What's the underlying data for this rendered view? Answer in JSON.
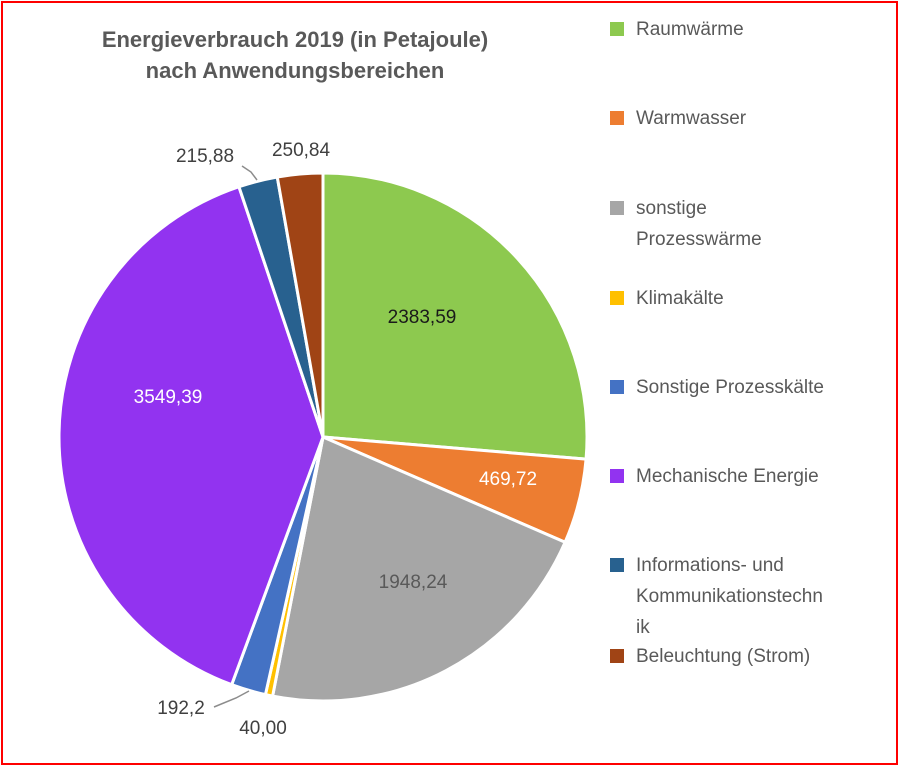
{
  "chart_data": {
    "type": "pie",
    "title": "Energieverbrauch 2019 (in Petajoule) nach Anwendungsbereichen",
    "title_lines": [
      "Energieverbrauch 2019 (in Petajoule)",
      "nach Anwendungsbereichen"
    ],
    "unit": "Petajoule",
    "year": "2019",
    "direction": "clockwise",
    "start_angle_deg": 0,
    "legend_position": "right",
    "frame_color": "#FE0000",
    "title_color": "#595959",
    "legend_text_color": "#595959",
    "total": 9049.86,
    "slices": [
      {
        "id": "raumwaerme",
        "label": "Raumwärme",
        "value": 2383.59,
        "display": "2383,59",
        "color": "#8DC94F",
        "label_placement": "inside",
        "legend_lines": [
          "Raumwärme"
        ]
      },
      {
        "id": "warmwasser",
        "label": "Warmwasser",
        "value": 469.72,
        "display": "469,72",
        "color": "#ED7D31",
        "label_placement": "inside",
        "legend_lines": [
          "Warmwasser"
        ]
      },
      {
        "id": "sonstige-prozesswaerme",
        "label": "sonstige Prozesswärme",
        "value": 1948.24,
        "display": "1948,24",
        "color": "#A6A6A6",
        "label_placement": "inside",
        "legend_lines": [
          "sonstige",
          "Prozesswärme"
        ]
      },
      {
        "id": "klimakaelte",
        "label": "Klimakälte",
        "value": 40.0,
        "display": "40,00",
        "color": "#FFC000",
        "label_placement": "outside",
        "legend_lines": [
          "Klimakälte"
        ]
      },
      {
        "id": "sonstige-prozesskaelte",
        "label": "Sonstige Prozesskälte",
        "value": 192.2,
        "display": "192,2",
        "color": "#4472C4",
        "label_placement": "outside",
        "legend_lines": [
          "Sonstige Prozesskälte"
        ]
      },
      {
        "id": "mechanische-energie",
        "label": "Mechanische Energie",
        "value": 3549.39,
        "display": "3549,39",
        "color": "#9233F0",
        "label_placement": "inside",
        "legend_lines": [
          "Mechanische Energie"
        ]
      },
      {
        "id": "informations-und-kommunikationstechnik",
        "label": "Informations- und Kommunikationstechnik",
        "value": 215.88,
        "display": "215,88",
        "color": "#28618F",
        "label_placement": "outside",
        "legend_lines": [
          "Informations- und",
          "Kommunikationstechn",
          "ik"
        ]
      },
      {
        "id": "beleuchtung-strom",
        "label": "Beleuchtung (Strom)",
        "value": 250.84,
        "display": "250,84",
        "color": "#A04415",
        "label_placement": "outside",
        "legend_lines": [
          "Beleuchtung (Strom)"
        ]
      }
    ]
  }
}
